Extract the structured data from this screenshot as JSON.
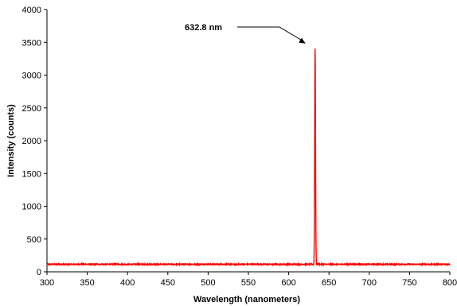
{
  "chart_data": {
    "type": "line",
    "title": "",
    "xlabel": "Wavelength (nanometers)",
    "ylabel": "Intensity (counts)",
    "xlim": [
      300,
      800
    ],
    "ylim": [
      0,
      4000
    ],
    "x_ticks": [
      300,
      350,
      400,
      450,
      500,
      550,
      600,
      650,
      700,
      750,
      800
    ],
    "y_ticks": [
      0,
      500,
      1000,
      1500,
      2000,
      2500,
      3000,
      3500,
      4000
    ],
    "grid": false,
    "legend": "none",
    "series": [
      {
        "color": "#ff0000",
        "baseline": 115,
        "peak": {
          "x": 632.8,
          "y": 3420,
          "fwhm": 1.2
        },
        "x": [
          300,
          350,
          400,
          450,
          500,
          550,
          600,
          625,
          628,
          630,
          631,
          632,
          632.5,
          632.8,
          633.2,
          634,
          635,
          637,
          640,
          650,
          700,
          750,
          800
        ],
        "y": [
          118,
          115,
          117,
          116,
          120,
          116,
          117,
          120,
          130,
          170,
          700,
          2900,
          3300,
          3420,
          2800,
          700,
          200,
          130,
          120,
          117,
          116,
          118,
          117
        ]
      }
    ],
    "annotations": [
      {
        "text": "632.8 nm",
        "target_x": 632.8,
        "target_y": 3420
      }
    ]
  }
}
